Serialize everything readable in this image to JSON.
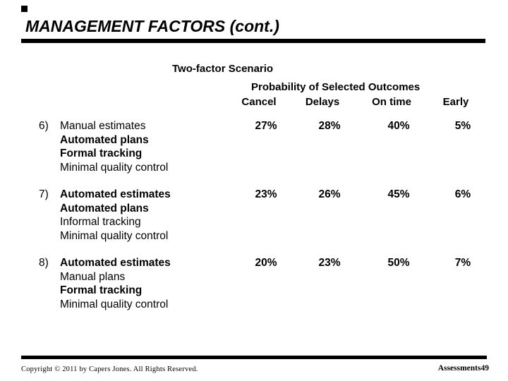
{
  "slide": {
    "title": "MANAGEMENT FACTORS (cont.)",
    "subtitle": "Two-factor Scenario",
    "table": {
      "header_group": "Probability of Selected Outcomes",
      "columns": [
        "Cancel",
        "Delays",
        "On time",
        "Early"
      ],
      "rows": [
        {
          "number": "6)",
          "factors": [
            {
              "text": "Manual estimates",
              "bold": false
            },
            {
              "text": "Automated plans",
              "bold": true
            },
            {
              "text": "Formal tracking",
              "bold": true
            },
            {
              "text": "Minimal quality control",
              "bold": false
            }
          ],
          "values": [
            "27%",
            "28%",
            "40%",
            "5%"
          ]
        },
        {
          "number": "7)",
          "factors": [
            {
              "text": "Automated estimates",
              "bold": true
            },
            {
              "text": "Automated plans",
              "bold": true
            },
            {
              "text": "Informal tracking",
              "bold": false
            },
            {
              "text": "Minimal quality control",
              "bold": false
            }
          ],
          "values": [
            "23%",
            "26%",
            "45%",
            "6%"
          ]
        },
        {
          "number": "8)",
          "factors": [
            {
              "text": "Automated estimates",
              "bold": true
            },
            {
              "text": "Manual plans",
              "bold": false
            },
            {
              "text": "Formal tracking",
              "bold": true
            },
            {
              "text": "Minimal quality control",
              "bold": false
            }
          ],
          "values": [
            "20%",
            "23%",
            "50%",
            "7%"
          ]
        }
      ]
    },
    "footer": {
      "copyright": "Copyright © 2011 by Capers Jones.  All Rights Reserved.",
      "page_label": "Assessments",
      "page_number": "49"
    },
    "colors": {
      "background": "#ffffff",
      "text": "#000000",
      "rule": "#000000"
    }
  }
}
